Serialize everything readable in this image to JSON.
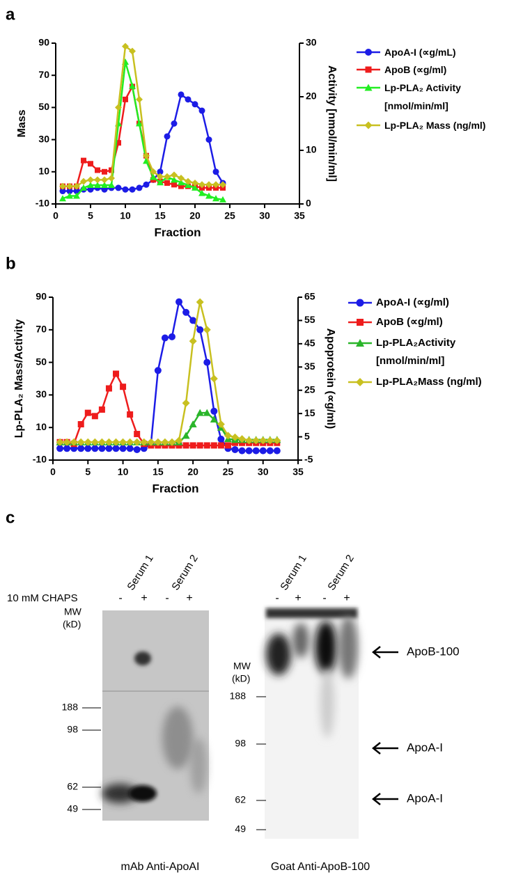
{
  "panel_labels": [
    "a",
    "b",
    "c"
  ],
  "chart_data": [
    {
      "type": "line",
      "xlabel": "Fraction",
      "ylabel": "Mass",
      "y2label": "Activity [nmol/min/ml]",
      "xlim": [
        0,
        35
      ],
      "xticks": [
        0,
        5,
        10,
        15,
        20,
        25,
        30,
        35
      ],
      "ylim": [
        -10,
        90
      ],
      "yticks": [
        -10,
        10,
        30,
        50,
        70,
        90
      ],
      "y2lim": [
        0,
        30
      ],
      "y2ticks": [
        0,
        10,
        20,
        30
      ],
      "x": [
        1,
        2,
        3,
        4,
        5,
        6,
        7,
        8,
        9,
        10,
        11,
        12,
        13,
        14,
        15,
        16,
        17,
        18,
        19,
        20,
        21,
        22,
        23,
        24
      ],
      "series": [
        {
          "name": "ApoA-I (∝g/mL)",
          "color": "#1c1ce6",
          "marker": "circle",
          "values": [
            -2,
            -2,
            -2,
            -1,
            -1,
            0,
            -1,
            0,
            0,
            -1,
            -1,
            0,
            2,
            5,
            10,
            32,
            40,
            58,
            55,
            52,
            48,
            30,
            10,
            3
          ]
        },
        {
          "name": "ApoB (∝g/ml)",
          "color": "#ee1c1c",
          "marker": "square",
          "values": [
            1,
            1,
            1,
            17,
            15,
            11,
            10,
            11,
            28,
            55,
            63,
            40,
            20,
            5,
            4,
            3,
            2,
            1,
            1,
            1,
            0,
            0,
            0,
            0
          ]
        },
        {
          "name": "Lp-PLA₂ Activity [nmol/min/ml]",
          "color": "#22ee22",
          "marker": "triangle",
          "axis": "y2",
          "values": [
            1,
            1.5,
            1.5,
            3,
            3.5,
            3.5,
            3.5,
            3.5,
            15,
            26.5,
            22,
            15,
            8,
            5,
            4,
            5,
            4.5,
            4,
            3.5,
            3,
            2,
            1.5,
            1,
            0.8
          ]
        },
        {
          "name": "Lp-PLA₂ Mass (ng/ml)",
          "color": "#c8c020",
          "marker": "diamond",
          "values": [
            1,
            1,
            1,
            4,
            5,
            5,
            5,
            6,
            50,
            88,
            85,
            55,
            20,
            10,
            7,
            7,
            8,
            6,
            4,
            3,
            2,
            2,
            2,
            2
          ]
        }
      ]
    },
    {
      "type": "line",
      "xlabel": "Fraction",
      "ylabel": "Lp-PLA₂ Mass/Activity",
      "y2label": "Apoprotein (∝g/ml)",
      "xlim": [
        0,
        35
      ],
      "xticks": [
        0,
        5,
        10,
        15,
        20,
        25,
        30,
        35
      ],
      "ylim": [
        -10,
        90
      ],
      "yticks": [
        -10,
        10,
        30,
        50,
        70,
        90
      ],
      "y2lim": [
        -5,
        65
      ],
      "y2ticks": [
        -5,
        5,
        15,
        25,
        35,
        45,
        55,
        65
      ],
      "x": [
        1,
        2,
        3,
        4,
        5,
        6,
        7,
        8,
        9,
        10,
        11,
        12,
        13,
        14,
        15,
        16,
        17,
        18,
        19,
        20,
        21,
        22,
        23,
        24,
        25,
        26,
        27,
        28,
        29,
        30,
        31,
        32
      ],
      "series": [
        {
          "name": "ApoA-I (∝g/ml)",
          "color": "#1c1ce6",
          "marker": "circle",
          "axis": "y2",
          "values": [
            0,
            0,
            0,
            0,
            0,
            0,
            0,
            0,
            0,
            0,
            0,
            -0.5,
            0,
            2,
            33.5,
            47.5,
            48,
            63,
            58.5,
            55,
            51,
            37,
            16,
            4,
            0,
            -0.5,
            -1,
            -1,
            -1,
            -1,
            -1,
            -1
          ]
        },
        {
          "name": "ApoB (∝g/ml)",
          "color": "#ee1c1c",
          "marker": "square",
          "axis": "y2",
          "values": [
            2.7,
            2.7,
            2,
            10.4,
            15.3,
            13.9,
            16.7,
            25.8,
            32.1,
            26.5,
            14.6,
            6.2,
            2,
            1.3,
            1.3,
            1.3,
            1.3,
            1.3,
            1.3,
            1.3,
            1.3,
            1.3,
            1.3,
            1.3,
            1.3,
            2.4,
            2.4,
            2.4,
            2.4,
            2.4,
            2.4,
            2.4
          ]
        },
        {
          "name": "Lp-PLA₂Activity [nmol/min/ml]",
          "color": "#2ab52a",
          "marker": "triangle",
          "values": [
            1,
            1,
            1,
            1,
            1,
            1,
            1,
            1,
            1,
            1,
            1,
            1,
            1,
            1,
            1,
            1,
            1,
            1,
            5,
            12,
            19,
            19,
            15,
            10,
            3,
            2.5,
            2.5,
            2.5,
            2.5,
            2.5,
            2.5,
            2.5
          ]
        },
        {
          "name": "Lp-PLA₂Mass (ng/ml)",
          "color": "#c8c020",
          "marker": "diamond",
          "values": [
            1,
            1,
            1,
            1,
            1,
            1,
            1,
            1,
            1,
            1,
            1,
            1,
            1,
            1,
            1,
            1,
            1,
            2,
            25,
            63,
            87,
            70,
            40,
            12,
            5,
            4,
            3,
            2,
            2,
            2,
            2,
            2
          ]
        }
      ]
    }
  ],
  "blots": [
    {
      "lanes": [
        "Serum 1",
        "Serum 2"
      ],
      "treatment": "10 mM CHAPS",
      "signs": [
        "-",
        "+",
        "-",
        "+"
      ],
      "mw_label": [
        "MW",
        "(kD)"
      ],
      "mw_markers": [
        188,
        98,
        62,
        49
      ],
      "caption": "mAb Anti-ApoAI"
    },
    {
      "lanes": [
        "Serum 1",
        "Serum 2"
      ],
      "signs": [
        "-",
        "+",
        "-",
        "+"
      ],
      "mw_label": [
        "MW",
        "(kD)"
      ],
      "mw_markers": [
        188,
        98,
        62,
        49
      ],
      "bands": [
        "ApoB-100",
        "ApoA-I",
        "ApoA-I"
      ],
      "caption": "Goat Anti-ApoB-100"
    }
  ]
}
